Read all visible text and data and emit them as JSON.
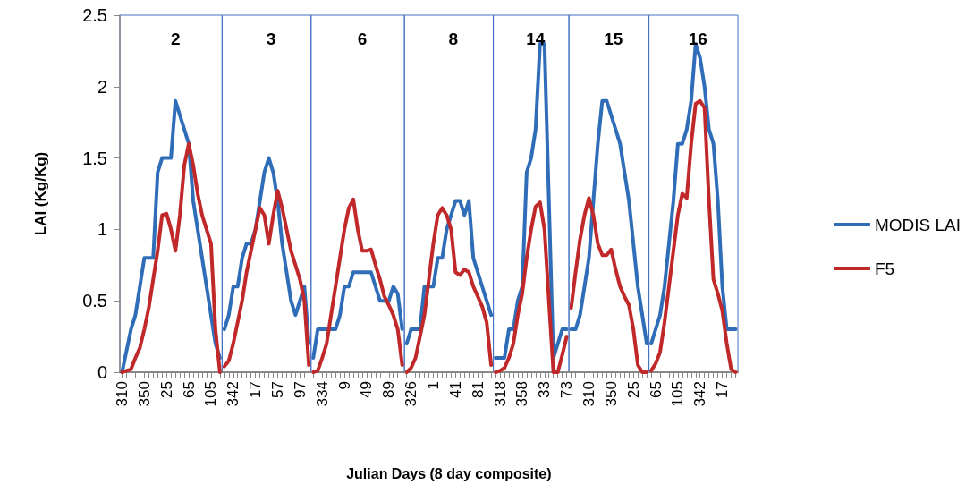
{
  "chart_data": [
    {
      "type": "line",
      "title": "2",
      "ylabel": "LAI (Kg/Kg)",
      "categories": [
        "310",
        null,
        null,
        null,
        null,
        "350",
        null,
        null,
        null,
        null,
        "25",
        null,
        null,
        null,
        null,
        "65",
        null,
        null,
        null,
        null,
        "105",
        null,
        null
      ],
      "ylim": [
        0,
        2.5
      ],
      "yticks": [
        0,
        0.5,
        1,
        1.5,
        2,
        2.5
      ],
      "grid": false,
      "marker": "none",
      "line_style": "solid",
      "series": [
        {
          "color": "#2f6db8",
          "values": [
            0,
            0.15,
            0.3,
            0.4,
            0.6,
            0.8,
            0.8,
            0.8,
            1.4,
            1.5,
            1.5,
            1.5,
            1.9,
            1.8,
            1.7,
            1.6,
            1.2,
            1.0,
            0.8,
            0.6,
            0.4,
            0.2,
            0.1
          ]
        },
        {
          "color": "#c0282a",
          "values": [
            0,
            0.01,
            0.02,
            0.1,
            0.17,
            0.3,
            0.45,
            0.65,
            0.85,
            1.1,
            1.11,
            1.0,
            0.85,
            1.1,
            1.45,
            1.6,
            1.45,
            1.25,
            1.1,
            1.0,
            0.9,
            0.3,
            0
          ]
        }
      ]
    },
    {
      "type": "line",
      "title": "3",
      "tick_labels": "x",
      "categories": [
        null,
        null,
        "342",
        null,
        null,
        null,
        null,
        "17",
        null,
        null,
        null,
        null,
        "57",
        null,
        null,
        null,
        null,
        "97",
        null,
        null
      ],
      "ylim": [
        0,
        2.5
      ],
      "yticks": [
        0,
        0.5,
        1,
        1.5,
        2,
        2.5
      ],
      "grid": false,
      "marker": "none",
      "line_style": "solid",
      "series": [
        {
          "color": "#2f6db8",
          "values": [
            0.3,
            0.4,
            0.6,
            0.6,
            0.8,
            0.9,
            0.9,
            1.0,
            1.2,
            1.4,
            1.5,
            1.4,
            1.2,
            0.9,
            0.7,
            0.5,
            0.4,
            0.5,
            0.6,
            0.2
          ]
        },
        {
          "color": "#c0282a",
          "values": [
            0.04,
            0.08,
            0.2,
            0.35,
            0.5,
            0.7,
            0.85,
            1.0,
            1.15,
            1.1,
            0.9,
            1.1,
            1.27,
            1.15,
            1.0,
            0.85,
            0.75,
            0.65,
            0.5,
            0.05
          ]
        }
      ]
    },
    {
      "type": "line",
      "title": "6",
      "tick_labels": "x",
      "categories": [
        null,
        null,
        "334",
        null,
        null,
        null,
        null,
        "9",
        null,
        null,
        null,
        null,
        "49",
        null,
        null,
        null,
        null,
        "89",
        null,
        null,
        null
      ],
      "ylim": [
        0,
        2.5
      ],
      "yticks": [
        0,
        0.5,
        1,
        1.5,
        2,
        2.5
      ],
      "grid": false,
      "marker": "none",
      "line_style": "solid",
      "series": [
        {
          "color": "#2f6db8",
          "values": [
            0.1,
            0.3,
            0.3,
            0.3,
            0.3,
            0.3,
            0.4,
            0.6,
            0.6,
            0.7,
            0.7,
            0.7,
            0.7,
            0.7,
            0.6,
            0.5,
            0.5,
            0.5,
            0.6,
            0.55,
            0.3
          ]
        },
        {
          "color": "#c0282a",
          "values": [
            0,
            0.01,
            0.1,
            0.2,
            0.4,
            0.6,
            0.8,
            1.0,
            1.15,
            1.21,
            1.0,
            0.85,
            0.85,
            0.86,
            0.75,
            0.65,
            0.53,
            0.47,
            0.4,
            0.3,
            0.05
          ]
        }
      ]
    },
    {
      "type": "line",
      "title": "8",
      "xlabel": "Julian Days (8 day composite)",
      "tick_labels": "x",
      "categories": [
        null,
        "326",
        null,
        null,
        null,
        null,
        "1",
        null,
        null,
        null,
        null,
        "41",
        null,
        null,
        null,
        null,
        "81",
        null,
        null,
        null
      ],
      "ylim": [
        0,
        2.5
      ],
      "yticks": [
        0,
        0.5,
        1,
        1.5,
        2,
        2.5
      ],
      "grid": false,
      "marker": "none",
      "line_style": "solid",
      "series": [
        {
          "color": "#2f6db8",
          "values": [
            0.2,
            0.3,
            0.3,
            0.3,
            0.6,
            0.6,
            0.6,
            0.8,
            0.8,
            1.0,
            1.1,
            1.2,
            1.2,
            1.1,
            1.2,
            0.8,
            0.7,
            0.6,
            0.5,
            0.4
          ]
        },
        {
          "color": "#c0282a",
          "values": [
            0,
            0.03,
            0.1,
            0.25,
            0.4,
            0.65,
            0.9,
            1.1,
            1.15,
            1.1,
            1.0,
            0.7,
            0.68,
            0.72,
            0.7,
            0.6,
            0.53,
            0.46,
            0.35,
            0.05
          ]
        }
      ]
    },
    {
      "type": "line",
      "title": "14",
      "tick_labels": "x",
      "categories": [
        null,
        "318",
        null,
        null,
        null,
        null,
        "358",
        null,
        null,
        null,
        null,
        "33",
        null,
        null,
        null,
        null,
        "73"
      ],
      "ylim": [
        0,
        2.5
      ],
      "yticks": [
        0,
        0.5,
        1,
        1.5,
        2,
        2.5
      ],
      "grid": false,
      "marker": "none",
      "line_style": "solid",
      "series": [
        {
          "color": "#2f6db8",
          "values": [
            0.1,
            0.1,
            0.1,
            0.3,
            0.3,
            0.5,
            0.6,
            1.4,
            1.5,
            1.7,
            2.3,
            2.3,
            1.2,
            0.1,
            0.2,
            0.3,
            0.3
          ]
        },
        {
          "color": "#c0282a",
          "values": [
            0,
            0.01,
            0.03,
            0.1,
            0.2,
            0.4,
            0.55,
            0.8,
            1.0,
            1.16,
            1.19,
            1.0,
            0.5,
            0,
            0,
            0.12,
            0.25
          ]
        }
      ]
    },
    {
      "type": "line",
      "title": "15",
      "tick_labels": "x",
      "categories": [
        null,
        null,
        null,
        null,
        "310",
        null,
        null,
        null,
        null,
        "350",
        null,
        null,
        null,
        null,
        "25",
        null,
        null,
        null
      ],
      "ylim": [
        0,
        2.5
      ],
      "yticks": [
        0,
        0.5,
        1,
        1.5,
        2,
        2.5
      ],
      "grid": false,
      "marker": "none",
      "line_style": "solid",
      "series": [
        {
          "color": "#2f6db8",
          "values": [
            0.3,
            0.3,
            0.4,
            0.6,
            0.8,
            1.2,
            1.6,
            1.9,
            1.9,
            1.8,
            1.7,
            1.6,
            1.4,
            1.2,
            0.9,
            0.6,
            0.4,
            0.2
          ]
        },
        {
          "color": "#c0282a",
          "values": [
            0.45,
            0.7,
            0.93,
            1.1,
            1.22,
            1.1,
            0.9,
            0.82,
            0.82,
            0.86,
            0.72,
            0.6,
            0.53,
            0.47,
            0.3,
            0.05,
            0,
            0
          ]
        }
      ]
    },
    {
      "type": "line",
      "title": "16",
      "tick_labels": "x",
      "legend": "right",
      "categories": [
        null,
        "65",
        null,
        null,
        null,
        null,
        "105",
        null,
        null,
        null,
        null,
        "342",
        null,
        null,
        null,
        null,
        "17",
        null,
        null,
        null
      ],
      "ylim": [
        0,
        2.5
      ],
      "yticks": [
        0,
        0.5,
        1,
        1.5,
        2,
        2.5
      ],
      "grid": false,
      "marker": "none",
      "line_style": "solid",
      "series": [
        {
          "name": "MODIS LAI",
          "color": "#2f6db8",
          "values": [
            0.2,
            0.3,
            0.4,
            0.6,
            0.9,
            1.2,
            1.6,
            1.6,
            1.7,
            1.9,
            2.3,
            2.2,
            2.0,
            1.7,
            1.6,
            1.2,
            0.6,
            0.3,
            0.3,
            0.3
          ]
        },
        {
          "name": "F5",
          "color": "#c0282a",
          "values": [
            0.01,
            0.06,
            0.14,
            0.35,
            0.6,
            0.85,
            1.1,
            1.25,
            1.22,
            1.6,
            1.88,
            1.9,
            1.85,
            1.2,
            0.65,
            0.55,
            0.43,
            0.2,
            0.02,
            0
          ]
        }
      ]
    }
  ]
}
